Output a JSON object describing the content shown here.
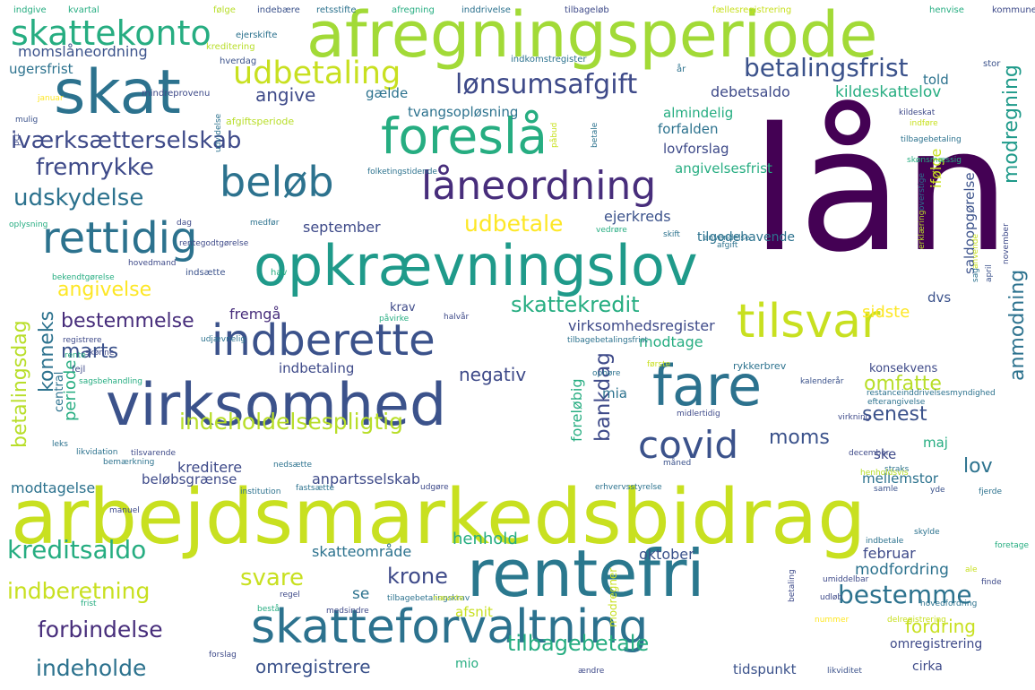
{
  "palette": {
    "purple": "#440154",
    "indigo": "#472d7b",
    "blue": "#3b528b",
    "steel": "#2c728e",
    "teal": "#21918c",
    "green": "#28ae80",
    "lime": "#5ec962",
    "yellowgreen": "#addc30",
    "yellow": "#fde725",
    "background": "#ffffff"
  },
  "words": [
    {
      "text": "lån",
      "color": "#440154"
    },
    {
      "text": "arbejdsmarkedsbidrag",
      "color": "#c8e020"
    },
    {
      "text": "afregningsperiode",
      "color": "#a2da37"
    },
    {
      "text": "opkrævningslov",
      "color": "#1f9a8a"
    },
    {
      "text": "virksomhed",
      "color": "#3b528b"
    },
    {
      "text": "skat",
      "color": "#2c728e"
    },
    {
      "text": "rentefri",
      "color": "#2a788e"
    },
    {
      "text": "skatteforvaltning",
      "color": "#2c728e"
    },
    {
      "text": "fare",
      "color": "#2c728e"
    },
    {
      "text": "foreslå",
      "color": "#26ad81"
    },
    {
      "text": "indberette",
      "color": "#3b528b"
    },
    {
      "text": "tilsvar",
      "color": "#c8e020"
    },
    {
      "text": "rettidig",
      "color": "#2c728e"
    },
    {
      "text": "låneordning",
      "color": "#472d7b"
    },
    {
      "text": "beløb",
      "color": "#2c728e"
    },
    {
      "text": "covid",
      "color": "#3b528b"
    },
    {
      "text": "skattekonto",
      "color": "#26ad81"
    },
    {
      "text": "udbetaling",
      "color": "#c8e020"
    },
    {
      "text": "lønsumsafgift",
      "color": "#3e4a89"
    },
    {
      "text": "betalingsfrist",
      "color": "#3b528b"
    },
    {
      "text": "iværksætterselskab",
      "color": "#3e4a89"
    },
    {
      "text": "fremrykke",
      "color": "#3e4a89"
    },
    {
      "text": "udskydelse",
      "color": "#2c728e"
    },
    {
      "text": "indeholdelsespligtig",
      "color": "#b8de29"
    },
    {
      "text": "kreditsaldo",
      "color": "#26ad81"
    },
    {
      "text": "indberetning",
      "color": "#c8e020"
    },
    {
      "text": "forbindelse",
      "color": "#472d7b"
    },
    {
      "text": "indeholde",
      "color": "#2c728e"
    },
    {
      "text": "svare",
      "color": "#c8e020"
    },
    {
      "text": "krone",
      "color": "#3e4a89"
    },
    {
      "text": "bestemme",
      "color": "#2c728e"
    },
    {
      "text": "tilbagebetale",
      "color": "#26ad81"
    },
    {
      "text": "omregistrere",
      "color": "#3b528b"
    },
    {
      "text": "skattekredit",
      "color": "#26ad81"
    },
    {
      "text": "angivelse",
      "color": "#fde725"
    },
    {
      "text": "marts",
      "color": "#3b528b"
    },
    {
      "text": "bestemmelse",
      "color": "#472d7b"
    },
    {
      "text": "konneks",
      "color": "#2c728e"
    },
    {
      "text": "betalingsdag",
      "color": "#b8de29"
    },
    {
      "text": "periode",
      "color": "#26ad81"
    },
    {
      "text": "bankdag",
      "color": "#3e4a89"
    },
    {
      "text": "moms",
      "color": "#3b528b"
    },
    {
      "text": "senest",
      "color": "#3b528b"
    },
    {
      "text": "omfatte",
      "color": "#b8de29"
    },
    {
      "text": "lov",
      "color": "#2c728e"
    },
    {
      "text": "anmodning",
      "color": "#2c728e"
    },
    {
      "text": "modregning",
      "color": "#1f9a8a"
    },
    {
      "text": "udbetale",
      "color": "#fde725"
    },
    {
      "text": "angive",
      "color": "#3e4a89"
    },
    {
      "text": "negativ",
      "color": "#3e4a89"
    },
    {
      "text": "fordring",
      "color": "#c8e020"
    },
    {
      "text": "henhold",
      "color": "#26ad81"
    },
    {
      "text": "oktober",
      "color": "#3b528b"
    },
    {
      "text": "skatteområde",
      "color": "#2c728e"
    },
    {
      "text": "februar",
      "color": "#3e4a89"
    },
    {
      "text": "modfordring",
      "color": "#2c728e"
    },
    {
      "text": "anpartsselskab",
      "color": "#3e4a89"
    },
    {
      "text": "virksomhedsregister",
      "color": "#3e4a89"
    },
    {
      "text": "indbetaling",
      "color": "#3e4a89"
    },
    {
      "text": "kreditere",
      "color": "#3e4a89"
    },
    {
      "text": "modtagelse",
      "color": "#2c728e"
    },
    {
      "text": "beløbsgrænse",
      "color": "#3e4a89"
    },
    {
      "text": "momslåneordning",
      "color": "#3b528b"
    },
    {
      "text": "ugersfrist",
      "color": "#2c728e"
    },
    {
      "text": "kildeskattelov",
      "color": "#26ad81"
    },
    {
      "text": "debetsaldo",
      "color": "#3e4a89"
    },
    {
      "text": "told",
      "color": "#2c728e"
    },
    {
      "text": "gælde",
      "color": "#2c728e"
    },
    {
      "text": "tvangsopløsning",
      "color": "#2c728e"
    },
    {
      "text": "almindelig",
      "color": "#26ad81"
    },
    {
      "text": "forfalden",
      "color": "#2c728e"
    },
    {
      "text": "lovforslag",
      "color": "#3e4a89"
    },
    {
      "text": "angivelsesfrist",
      "color": "#26ad81"
    },
    {
      "text": "ifølge",
      "color": "#c8e020"
    },
    {
      "text": "ejerkreds",
      "color": "#3b528b"
    },
    {
      "text": "september",
      "color": "#3e4a89"
    },
    {
      "text": "saldoopgørelse",
      "color": "#3b528b"
    },
    {
      "text": "tilgodehavende",
      "color": "#2c728e"
    },
    {
      "text": "dvs",
      "color": "#3b528b"
    },
    {
      "text": "sidste",
      "color": "#fde725"
    },
    {
      "text": "fremgå",
      "color": "#472d7b"
    },
    {
      "text": "krav",
      "color": "#3e4a89"
    },
    {
      "text": "modtage",
      "color": "#26ad81"
    },
    {
      "text": "mia",
      "color": "#2c728e"
    },
    {
      "text": "foreløbig",
      "color": "#26ad81"
    },
    {
      "text": "central",
      "color": "#2c728e"
    },
    {
      "text": "ske",
      "color": "#3e4a89"
    },
    {
      "text": "maj",
      "color": "#26ad81"
    },
    {
      "text": "mellemstor",
      "color": "#2c728e"
    },
    {
      "text": "konsekvens",
      "color": "#3e4a89"
    },
    {
      "text": "se",
      "color": "#2c728e"
    },
    {
      "text": "afsnit",
      "color": "#c8e020"
    },
    {
      "text": "mio",
      "color": "#26ad81"
    },
    {
      "text": "tidspunkt",
      "color": "#3b528b"
    },
    {
      "text": "cirka",
      "color": "#3e4a89"
    },
    {
      "text": "omregistrering",
      "color": "#3e4a89"
    },
    {
      "text": "modregner",
      "color": "#c8e020"
    },
    {
      "text": "rykkerbrev",
      "color": "#2c728e"
    },
    {
      "text": "indgive",
      "color": "#26ad81"
    },
    {
      "text": "kvartal",
      "color": "#26ad81"
    },
    {
      "text": "følge",
      "color": "#b8de29"
    },
    {
      "text": "indebære",
      "color": "#3b528b"
    },
    {
      "text": "retsstifte",
      "color": "#2c728e"
    },
    {
      "text": "afregning",
      "color": "#26ad81"
    },
    {
      "text": "inddrivelse",
      "color": "#2c728e"
    },
    {
      "text": "tilbageløb",
      "color": "#3e4a89"
    },
    {
      "text": "fællesregistrering",
      "color": "#c8e020"
    },
    {
      "text": "henvise",
      "color": "#26ad81"
    },
    {
      "text": "kommune",
      "color": "#3e4a89"
    },
    {
      "text": "ejerskifte",
      "color": "#2c728e"
    },
    {
      "text": "kreditering",
      "color": "#b8de29"
    },
    {
      "text": "hverdag",
      "color": "#3b528b"
    },
    {
      "text": "indkomstregister",
      "color": "#2c728e"
    },
    {
      "text": "mindreprovenu",
      "color": "#3e4a89"
    },
    {
      "text": "stor",
      "color": "#3b528b"
    },
    {
      "text": "år",
      "color": "#2c728e"
    },
    {
      "text": "januar",
      "color": "#fde725"
    },
    {
      "text": "afgiftsperiode",
      "color": "#b8de29"
    },
    {
      "text": "mulig",
      "color": "#3b528b"
    },
    {
      "text": "kildeskat",
      "color": "#3e4a89"
    },
    {
      "text": "indføre",
      "color": "#c8e020"
    },
    {
      "text": "tilbagebetaling",
      "color": "#2c728e"
    },
    {
      "text": "pct",
      "color": "#3e4a89"
    },
    {
      "text": "udvidelse",
      "color": "#2c728e"
    },
    {
      "text": "betale",
      "color": "#2c728e"
    },
    {
      "text": "påbud",
      "color": "#c8e020"
    },
    {
      "text": "folketingstidende",
      "color": "#2c728e"
    },
    {
      "text": "skønsmæssig",
      "color": "#26ad81"
    },
    {
      "text": "overstige",
      "color": "#2c728e"
    },
    {
      "text": "oplysning",
      "color": "#26ad81"
    },
    {
      "text": "dag",
      "color": "#3e4a89"
    },
    {
      "text": "medfør",
      "color": "#2c728e"
    },
    {
      "text": "rentegodtgørelse",
      "color": "#3e4a89"
    },
    {
      "text": "vedrøre",
      "color": "#26ad81"
    },
    {
      "text": "anvendelse",
      "color": "#2c728e"
    },
    {
      "text": "skift",
      "color": "#2c728e"
    },
    {
      "text": "erklæring",
      "color": "#b8de29"
    },
    {
      "text": "afgift",
      "color": "#2c728e"
    },
    {
      "text": "anvende",
      "color": "#c8e020"
    },
    {
      "text": "bekendtgørelse",
      "color": "#26ad81"
    },
    {
      "text": "hovedmand",
      "color": "#3e4a89"
    },
    {
      "text": "indsætte",
      "color": "#3b528b"
    },
    {
      "text": "hav",
      "color": "#26ad81"
    },
    {
      "text": "sag",
      "color": "#2c728e"
    },
    {
      "text": "april",
      "color": "#3b528b"
    },
    {
      "text": "påvirke",
      "color": "#26ad81"
    },
    {
      "text": "halvår",
      "color": "#3e4a89"
    },
    {
      "text": "udjævnelig",
      "color": "#2c728e"
    },
    {
      "text": "tilbagebetalingsfrist",
      "color": "#2c728e"
    },
    {
      "text": "skønne",
      "color": "#3e4a89"
    },
    {
      "text": "fejl",
      "color": "#3e4a89"
    },
    {
      "text": "registrere",
      "color": "#3e4a89"
    },
    {
      "text": "rente",
      "color": "#26ad81"
    },
    {
      "text": "sagsbehandling",
      "color": "#26ad81"
    },
    {
      "text": "ophøre",
      "color": "#2c728e"
    },
    {
      "text": "første",
      "color": "#c8e020"
    },
    {
      "text": "kalenderår",
      "color": "#3b528b"
    },
    {
      "text": "restanceinddrivelsesmyndighed",
      "color": "#2c728e"
    },
    {
      "text": "efterangivelse",
      "color": "#2c728e"
    },
    {
      "text": "november",
      "color": "#3e4a89"
    },
    {
      "text": "midlertidig",
      "color": "#3e4a89"
    },
    {
      "text": "virkning",
      "color": "#3e4a89"
    },
    {
      "text": "leks",
      "color": "#2c728e"
    },
    {
      "text": "likvidation",
      "color": "#2c728e"
    },
    {
      "text": "tilsvarende",
      "color": "#3e4a89"
    },
    {
      "text": "bemærkning",
      "color": "#2c728e"
    },
    {
      "text": "nedsætte",
      "color": "#2c728e"
    },
    {
      "text": "måned",
      "color": "#3b528b"
    },
    {
      "text": "straks",
      "color": "#2c728e"
    },
    {
      "text": "december",
      "color": "#3e4a89"
    },
    {
      "text": "henholdsvis",
      "color": "#b8de29"
    },
    {
      "text": "samle",
      "color": "#3b528b"
    },
    {
      "text": "institution",
      "color": "#2c728e"
    },
    {
      "text": "fastsætte",
      "color": "#2c728e"
    },
    {
      "text": "udgøre",
      "color": "#3e4a89"
    },
    {
      "text": "erhvervsstyrelse",
      "color": "#2c728e"
    },
    {
      "text": "yde",
      "color": "#3b528b"
    },
    {
      "text": "fjerde",
      "color": "#2c728e"
    },
    {
      "text": "manuel",
      "color": "#3e4a89"
    },
    {
      "text": "skylde",
      "color": "#2c728e"
    },
    {
      "text": "indbetale",
      "color": "#2c728e"
    },
    {
      "text": "ale",
      "color": "#c8e020"
    },
    {
      "text": "foretage",
      "color": "#26ad81"
    },
    {
      "text": "frist",
      "color": "#26ad81"
    },
    {
      "text": "tilbagebetalingskrav",
      "color": "#2c728e"
    },
    {
      "text": "nævnte",
      "color": "#c8e020"
    },
    {
      "text": "betaling",
      "color": "#3e4a89"
    },
    {
      "text": "umiddelbar",
      "color": "#3e4a89"
    },
    {
      "text": "udløb",
      "color": "#3e4a89"
    },
    {
      "text": "finde",
      "color": "#3e4a89"
    },
    {
      "text": "regel",
      "color": "#3e4a89"
    },
    {
      "text": "bestå",
      "color": "#26ad81"
    },
    {
      "text": "medsindre",
      "color": "#3e4a89"
    },
    {
      "text": "nummer",
      "color": "#fde725"
    },
    {
      "text": "hovedfordring",
      "color": "#2c728e"
    },
    {
      "text": "delregistrering",
      "color": "#c8e020"
    },
    {
      "text": "forslag",
      "color": "#3e4a89"
    },
    {
      "text": "ændre",
      "color": "#3e4a89"
    },
    {
      "text": "likviditet",
      "color": "#3b528b"
    }
  ]
}
